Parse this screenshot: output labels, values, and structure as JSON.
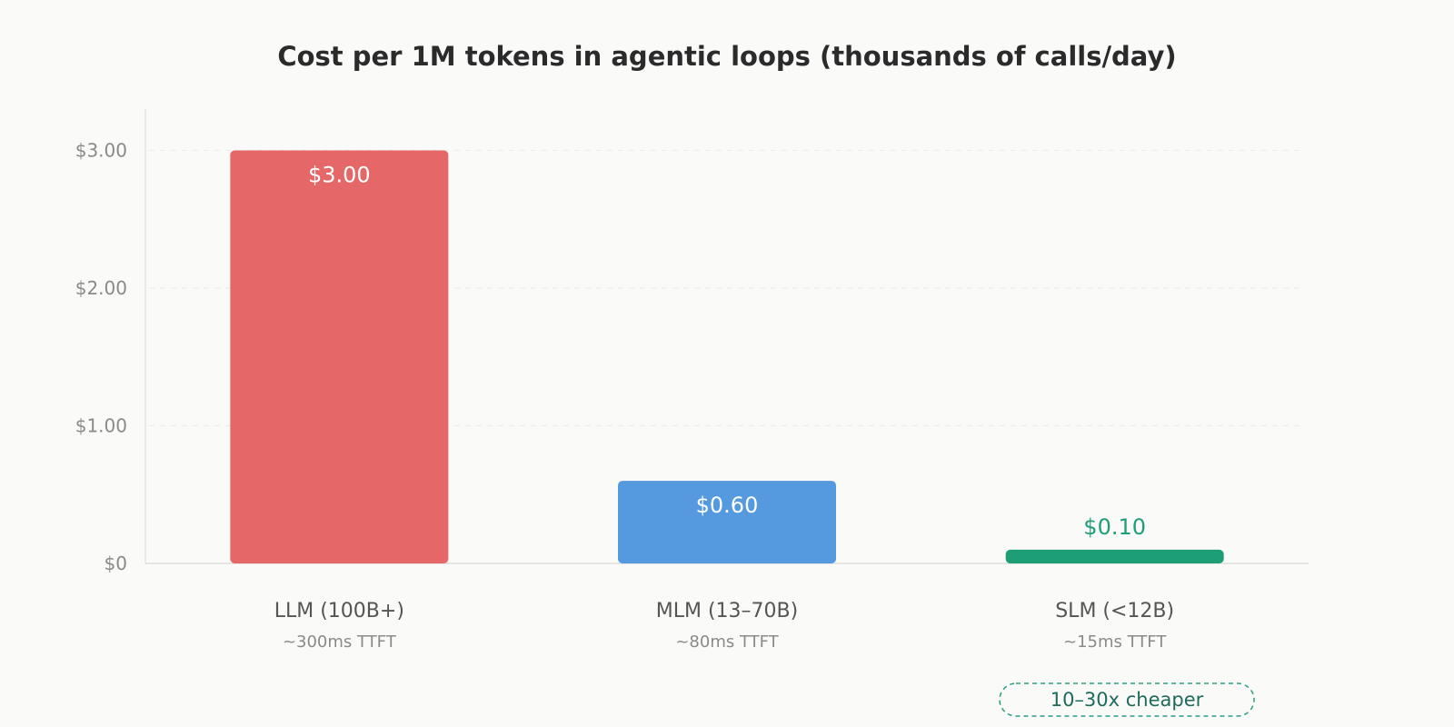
{
  "chart_data": {
    "type": "bar",
    "title": "Cost per 1M tokens in agentic loops (thousands of calls/day)",
    "xlabel": "",
    "ylabel": "",
    "ylim": [
      0,
      3.3
    ],
    "grid": true,
    "y_ticks": [
      {
        "value": 0,
        "label": "$0"
      },
      {
        "value": 1,
        "label": "$1.00"
      },
      {
        "value": 2,
        "label": "$2.00"
      },
      {
        "value": 3,
        "label": "$3.00"
      }
    ],
    "categories": [
      "LLM (100B+)",
      "MLM (13–70B)",
      "SLM (<12B)"
    ],
    "subtitles": [
      "~300ms TTFT",
      "~80ms TTFT",
      "~15ms TTFT"
    ],
    "values": [
      3.0,
      0.6,
      0.1
    ],
    "value_labels": [
      "$3.00",
      "$0.60",
      "$0.10"
    ],
    "colors": [
      "#e66767",
      "#5599de",
      "#1e9e77"
    ],
    "annotation": "10–30x cheaper"
  }
}
